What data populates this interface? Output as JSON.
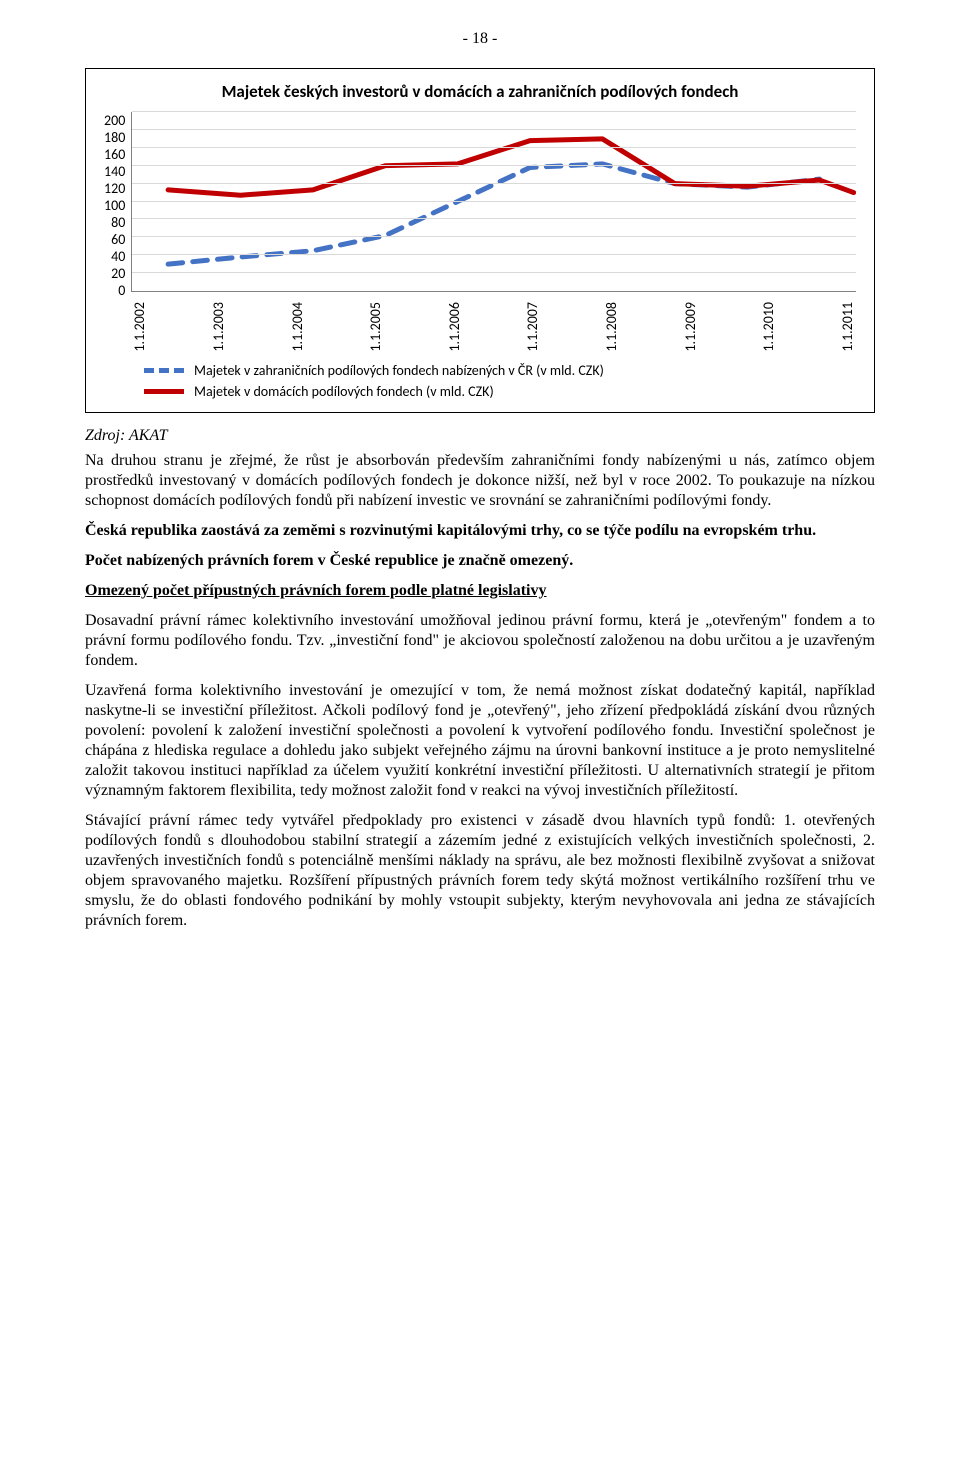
{
  "page_number": "- 18 -",
  "chart": {
    "type": "line",
    "title": "Majetek českých investorů v domácích a zahraničních podílových fondech",
    "title_fontsize": 17,
    "background_color": "#ffffff",
    "grid_color": "#d9d9d9",
    "axis_color": "#808080",
    "yticks": [
      "200",
      "180",
      "160",
      "140",
      "120",
      "100",
      "80",
      "60",
      "40",
      "20",
      "0"
    ],
    "ylim": [
      0,
      200
    ],
    "ytick_step": 20,
    "categories": [
      "1.1.2002",
      "1.1.2003",
      "1.1.2004",
      "1.1.2005",
      "1.1.2006",
      "1.1.2007",
      "1.1.2008",
      "1.1.2009",
      "1.1.2010",
      "1.1.2011"
    ],
    "series": [
      {
        "name": "Majetek v zahraničních podílových fondech nabízených v ČR (v mld. CZK)",
        "values": [
          30,
          38,
          45,
          62,
          100,
          138,
          142,
          120,
          116,
          125
        ],
        "color": "#4472c4",
        "style": "dashed",
        "line_width": 5
      },
      {
        "name": "Majetek v domácích podílových fondech (v mld. CZK)",
        "values": [
          113,
          107,
          113,
          140,
          142,
          168,
          170,
          120,
          117,
          124
        ],
        "color": "#c00000",
        "style": "solid",
        "line_width": 5
      }
    ],
    "extra_end_point_series2": 110
  },
  "source": "Zdroj: AKAT",
  "paragraphs": {
    "p1": "Na druhou stranu je zřejmé, že růst je absorbován především zahraničními fondy nabízenými u nás, zatímco objem prostředků investovaný v domácích podílových fondech je dokonce nižší, než byl v roce 2002. To poukazuje na nízkou schopnost domácích podílových fondů při nabízení investic ve srovnání se zahraničními podílovými fondy.",
    "p2": "Česká republika zaostává za zeměmi s rozvinutými kapitálovými trhy, co se týče podílu na evropském trhu.",
    "p3": "Počet nabízených právních forem v České republice je značně omezený.",
    "p4_heading": "Omezený počet přípustných právních forem podle platné legislativy",
    "p5": "Dosavadní právní rámec kolektivního investování umožňoval jedinou právní formu, která je „otevřeným\" fondem a to právní formu podílového fondu. Tzv. „investiční fond\" je akciovou společností založenou na dobu určitou a je uzavřeným fondem.",
    "p6": "Uzavřená forma kolektivního investování je omezující v tom, že nemá možnost získat dodatečný kapitál, například naskytne-li se investiční příležitost. Ačkoli podílový fond je „otevřený\", jeho zřízení předpokládá získání dvou různých povolení: povolení k založení investiční společnosti a povolení k vytvoření podílového fondu. Investiční společnost je chápána z hlediska regulace a dohledu jako subjekt veřejného zájmu na úrovni bankovní instituce a je proto nemyslitelné založit takovou instituci například za účelem využití konkrétní investiční příležitosti. U alternativních strategií je přitom významným faktorem flexibilita, tedy možnost založit fond v reakci na vývoj investičních příležitostí.",
    "p7": "Stávající právní rámec tedy vytvářel předpoklady pro existenci v zásadě dvou hlavních typů fondů: 1. otevřených podílových fondů s dlouhodobou stabilní strategií a zázemím jedné z existujících velkých investičních společnosti, 2. uzavřených investičních fondů s potenciálně menšími náklady na správu, ale bez možnosti flexibilně zvyšovat a snižovat objem spravovaného majetku. Rozšíření přípustných právních forem tedy skýtá možnost vertikálního rozšíření trhu ve smyslu, že do oblasti fondového podnikání by mohly vstoupit subjekty, kterým nevyhovovala ani jedna ze stávajících právních forem."
  }
}
